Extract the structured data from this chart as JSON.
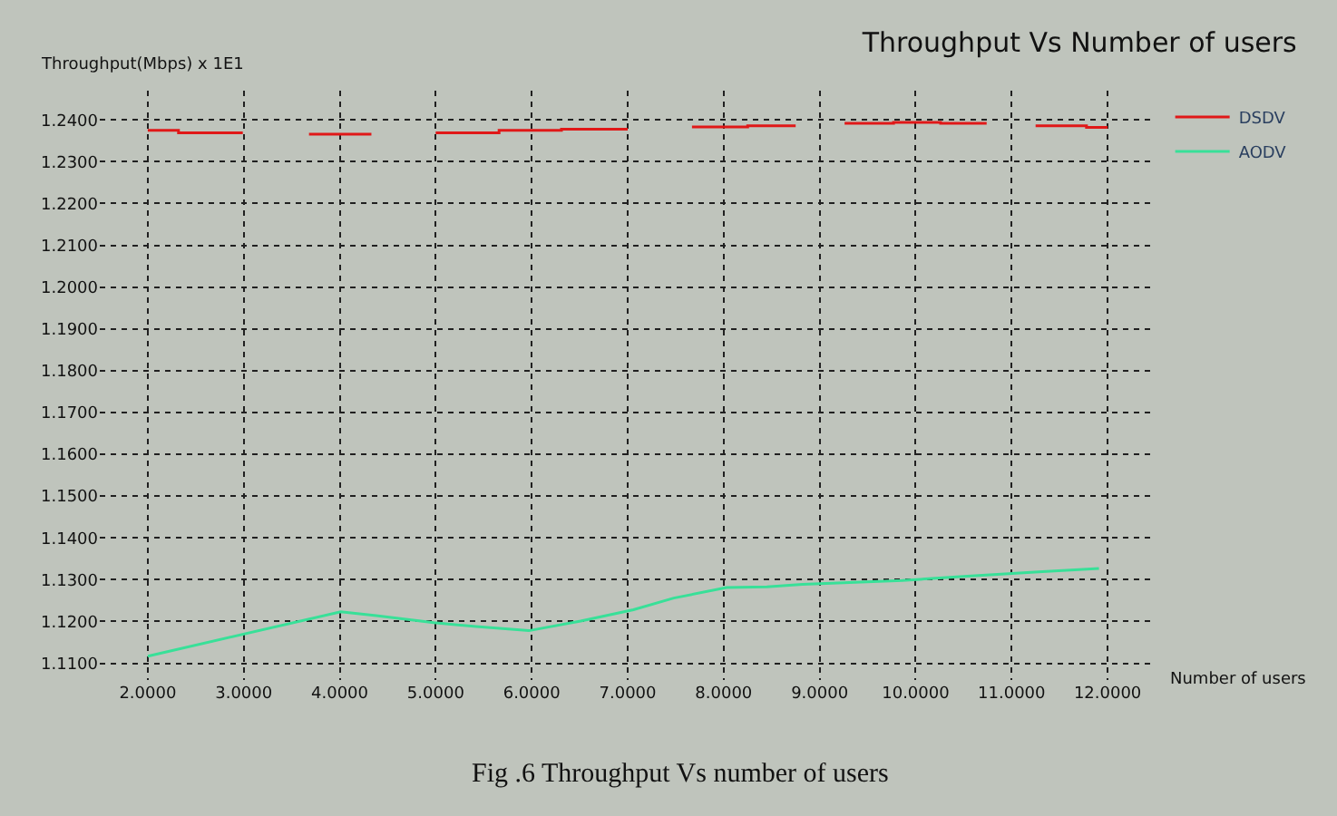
{
  "chart_data": {
    "type": "line",
    "title": "Throughput Vs Number of users",
    "xlabel": "Number of users",
    "ylabel": "Throughput(Mbps) x 1E1",
    "annotations": [
      "Fig .6 Throughput Vs number of users"
    ],
    "xlim": [
      1.5,
      12.5
    ],
    "xticks": [
      {
        "value": 2,
        "label": "2.0000"
      },
      {
        "value": 3,
        "label": "3.0000"
      },
      {
        "value": 4,
        "label": "4.0000"
      },
      {
        "value": 5,
        "label": "5.0000"
      },
      {
        "value": 6,
        "label": "6.0000"
      },
      {
        "value": 7,
        "label": "7.0000"
      },
      {
        "value": 8,
        "label": "8.0000"
      },
      {
        "value": 9,
        "label": "9.0000"
      },
      {
        "value": 10,
        "label": "10.0000"
      },
      {
        "value": 11,
        "label": "11.0000"
      },
      {
        "value": 12,
        "label": "12.0000"
      }
    ],
    "ylim": [
      1.106,
      1.247
    ],
    "yticks": [
      {
        "value": 1.11,
        "label": "1.1100"
      },
      {
        "value": 1.12,
        "label": "1.1200"
      },
      {
        "value": 1.13,
        "label": "1.1300"
      },
      {
        "value": 1.14,
        "label": "1.1400"
      },
      {
        "value": 1.15,
        "label": "1.1500"
      },
      {
        "value": 1.16,
        "label": "1.1600"
      },
      {
        "value": 1.17,
        "label": "1.1700"
      },
      {
        "value": 1.18,
        "label": "1.1800"
      },
      {
        "value": 1.19,
        "label": "1.1900"
      },
      {
        "value": 1.2,
        "label": "1.2000"
      },
      {
        "value": 1.21,
        "label": "1.2100"
      },
      {
        "value": 1.22,
        "label": "1.2200"
      },
      {
        "value": 1.23,
        "label": "1.2300"
      },
      {
        "value": 1.24,
        "label": "1.2400"
      }
    ],
    "grid": true,
    "legend": "top right",
    "line_style": "solid",
    "series": [
      {
        "name": "DSDV",
        "color": "#e01818",
        "x": [
          2.0,
          2.32,
          2.32,
          2.99,
          3.3,
          3.68,
          4.33,
          4.7,
          5.0,
          5.66,
          5.66,
          6.31,
          6.31,
          7.0,
          7.3,
          7.67,
          8.25,
          8.25,
          8.75,
          9.0,
          9.26,
          9.77,
          9.77,
          10.26,
          10.26,
          10.74,
          11.0,
          11.25,
          11.78,
          11.78,
          12.0
        ],
        "values": [
          1.2375,
          1.2375,
          1.2369,
          1.2369,
          null,
          1.2366,
          1.2366,
          null,
          1.2369,
          1.2369,
          1.2375,
          1.2375,
          1.2378,
          1.2378,
          null,
          1.2383,
          1.2383,
          1.2386,
          1.2386,
          null,
          1.2392,
          1.2392,
          1.2394,
          1.2394,
          1.2392,
          1.2392,
          null,
          1.2386,
          1.2386,
          1.2382,
          1.2382
        ]
      },
      {
        "name": "AODV",
        "color": "#38e098",
        "x": [
          2.0,
          4.01,
          4.38,
          4.98,
          5.42,
          5.97,
          6.51,
          7.06,
          7.48,
          8.03,
          8.45,
          8.82,
          9.86,
          10.5,
          11.32,
          11.91
        ],
        "values": [
          1.1117,
          1.1223,
          1.1214,
          1.1197,
          1.1188,
          1.1178,
          1.1201,
          1.1228,
          1.1256,
          1.1281,
          1.1283,
          1.1289,
          1.1298,
          1.1308,
          1.1319,
          1.1327
        ]
      }
    ]
  }
}
